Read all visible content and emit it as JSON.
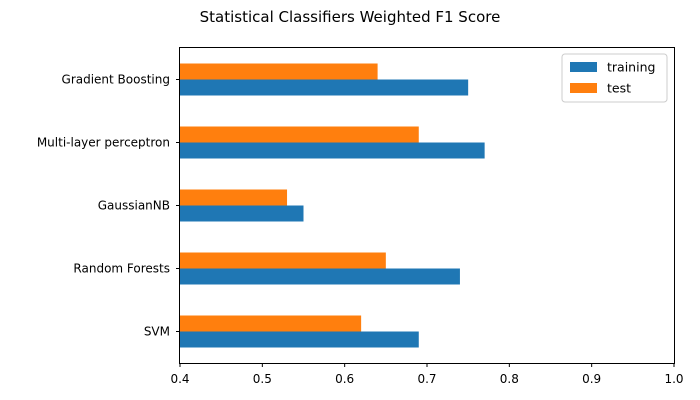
{
  "chart_data": {
    "type": "bar",
    "orientation": "horizontal",
    "title": "Statistical Classifiers Weighted F1 Score",
    "xlabel": "",
    "ylabel": "",
    "categories": [
      "SVM",
      "Random Forests",
      "GaussianNB",
      "Multi-layer perceptron",
      "Gradient Boosting"
    ],
    "series": [
      {
        "name": "training",
        "color": "#1f77b4",
        "values": [
          0.69,
          0.74,
          0.55,
          0.77,
          0.75
        ]
      },
      {
        "name": "test",
        "color": "#ff7f0e",
        "values": [
          0.62,
          0.65,
          0.53,
          0.69,
          0.64
        ]
      }
    ],
    "xlim": [
      0.4,
      1.0
    ],
    "xticks": [
      "0.4",
      "0.5",
      "0.6",
      "0.7",
      "0.8",
      "0.9",
      "1.0"
    ],
    "grid": false,
    "legend_position": "top-right"
  }
}
